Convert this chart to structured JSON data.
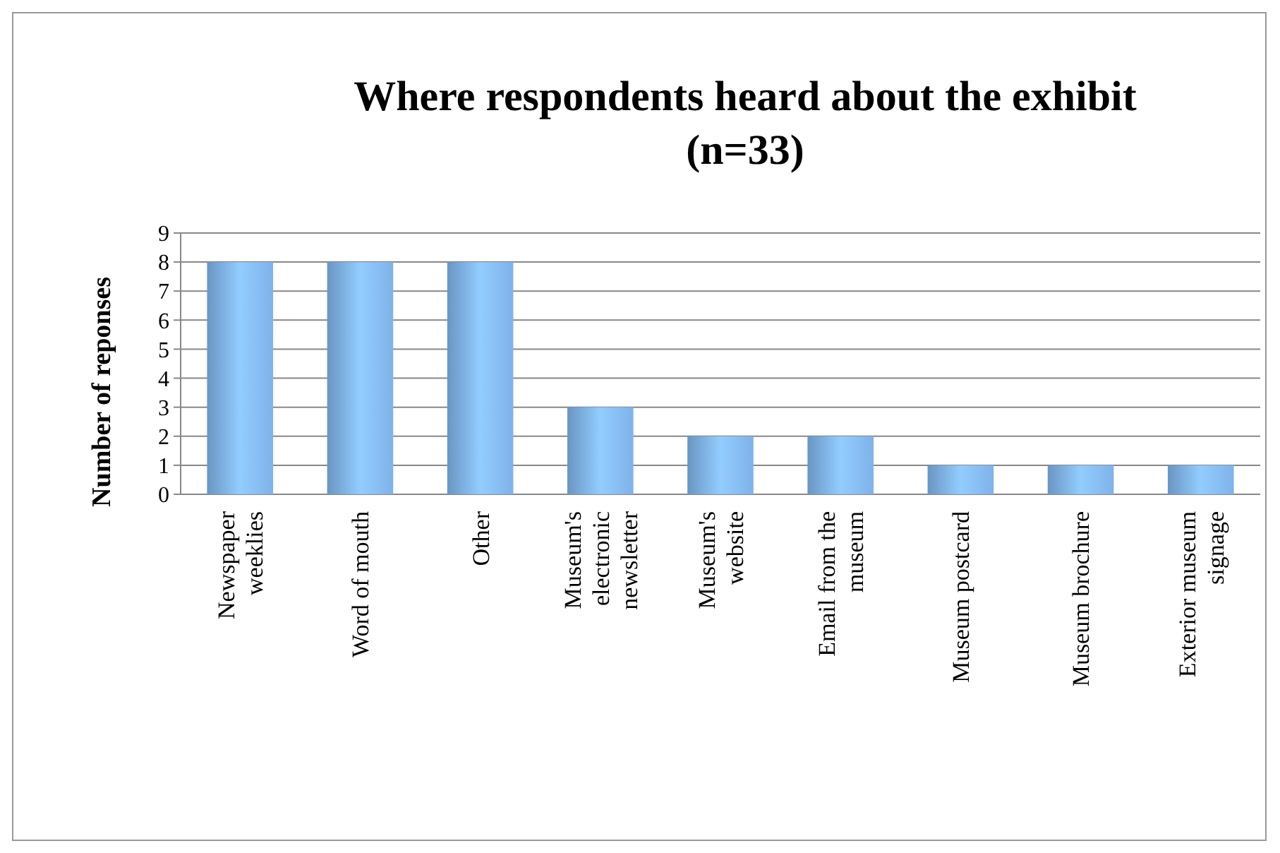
{
  "chart_data": {
    "type": "bar",
    "title": "Where respondents heard about the exhibit (n=33)",
    "ylabel": "Number of reponses",
    "categories": [
      "Newspaper weeklies",
      "Word of mouth",
      "Other",
      "Museum's electronic newsletter",
      "Museum's website",
      "Email from the museum",
      "Museum postcard",
      "Museum brochure",
      "Exterior museum signage"
    ],
    "values": [
      8,
      8,
      8,
      3,
      2,
      2,
      1,
      1,
      1
    ],
    "color": "#7fb2ea",
    "ylim": [
      0,
      9
    ],
    "yticks": [
      0,
      1,
      2,
      3,
      4,
      5,
      6,
      7,
      8,
      9
    ],
    "grid": "y"
  }
}
